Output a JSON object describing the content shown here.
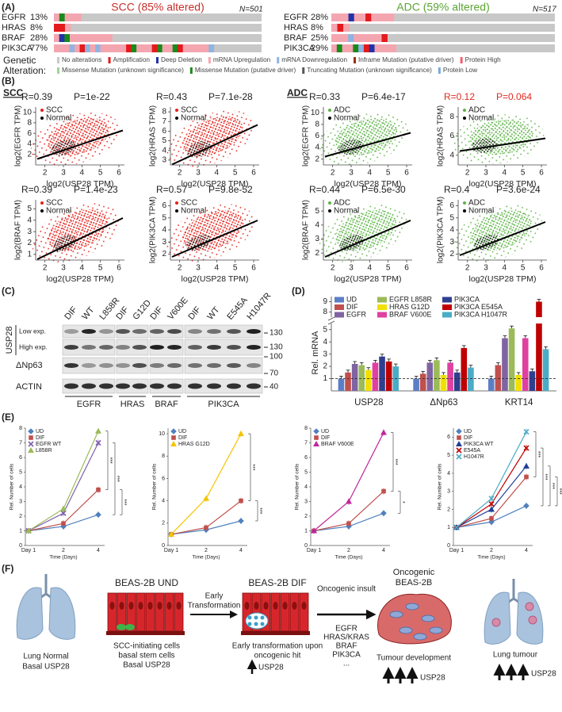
{
  "panel_a": {
    "label": "(A)",
    "groups": [
      {
        "title": "SCC (85% altered)",
        "color": "#c62f2a",
        "n": "N=501",
        "genes": [
          "EGFR",
          "HRAS",
          "BRAF",
          "PIK3CA"
        ],
        "percents": [
          "13%",
          "8%",
          "28%",
          "77%"
        ]
      },
      {
        "title": "ADC (59% altered)",
        "color": "#5aa532",
        "n": "N=517",
        "genes": [
          "EGFR",
          "HRAS",
          "BRAF",
          "PIK3CA"
        ],
        "percents": [
          "28%",
          "8%",
          "25%",
          "29%"
        ]
      }
    ],
    "legend_title": [
      "Genetic",
      "Alteration:"
    ],
    "legend": [
      {
        "name": "No alterations",
        "color": "#c8c8c8"
      },
      {
        "name": "Amplification",
        "color": "#e41a1c"
      },
      {
        "name": "Deep Deletion",
        "color": "#2432a8"
      },
      {
        "name": "mRNA Upregulation",
        "color": "#f4a6b0"
      },
      {
        "name": "mRNA Downregulation",
        "color": "#8fb4e0"
      },
      {
        "name": "Inframe Mutation (putative driver)",
        "color": "#993404"
      },
      {
        "name": "Protein High",
        "color": "#f06070"
      },
      {
        "name": "Missense Mutation (unknown significance)",
        "color": "#9fd39a"
      },
      {
        "name": "Missense Mutation (putative driver)",
        "color": "#1a8a1a"
      },
      {
        "name": "Truncating Mutation (unknown significance)",
        "color": "#555555"
      },
      {
        "name": "Protein Low",
        "color": "#7aa8d8"
      }
    ]
  },
  "panel_b": {
    "label": "(B)",
    "xlim": [
      1.5,
      6.3
    ],
    "xticks": [
      2,
      3,
      4,
      5,
      6
    ],
    "groups": [
      {
        "name": "SCC",
        "color": "#e32119",
        "plots": [
          {
            "r": "R=0.39",
            "p": "P=1e-22",
            "stat_color": "#222222",
            "ylabel": "log2(EGFR TPM)",
            "legend": [
              "SCC",
              "Normal"
            ],
            "xlabel": "log2(USP28 TPM)",
            "ylim": [
              0,
              11
            ],
            "yticks": [
              2,
              4,
              6,
              8,
              10
            ]
          },
          {
            "r": "R=0.43",
            "p": "P=7.1e-28",
            "stat_color": "#222222",
            "ylabel": "log2(HRAS TPM)",
            "legend": [
              "SCC",
              "Normal"
            ],
            "xlabel": "log2(USP28 TPM)",
            "ylim": [
              2.5,
              8.5
            ],
            "yticks": [
              3,
              4,
              5,
              6,
              7,
              8
            ]
          },
          {
            "r": "R=0.39",
            "p": "P=1.4e-23",
            "stat_color": "#222222",
            "ylabel": "log2(BRAF TPM)",
            "legend": [
              "SCC",
              "Normal"
            ],
            "xlabel": "log2(USP28 TPM)",
            "ylim": [
              0.5,
              5.8
            ],
            "yticks": [
              1,
              2,
              3,
              4,
              5
            ]
          },
          {
            "r": "R=0.57",
            "p": "P=9.8e-52",
            "stat_color": "#222222",
            "ylabel": "log2(PIK3CA TPM)",
            "legend": [
              "SCC",
              "Normal"
            ],
            "xlabel": "log2(USP28 TPM)",
            "ylim": [
              1.5,
              6.5
            ],
            "yticks": [
              2,
              3,
              4,
              5,
              6
            ]
          }
        ]
      },
      {
        "name": "ADC",
        "color": "#5cb445",
        "plots": [
          {
            "r": "R=0.33",
            "p": "P=6.4e-17",
            "stat_color": "#222222",
            "ylabel": "log2(EGFR TPM)",
            "legend": [
              "ADC",
              "Normal"
            ],
            "xlabel": "log2(USP28 TPM)",
            "ylim": [
              1,
              11
            ],
            "yticks": [
              2,
              4,
              6,
              8,
              10
            ]
          },
          {
            "r": "R=0.12",
            "p": "P=0.064",
            "stat_color": "#e02a20",
            "ylabel": "log2(HRAS TPM)",
            "legend": [
              "ADC",
              "Normal"
            ],
            "xlabel": "log2(USP28 TPM)",
            "ylim": [
              3,
              9
            ],
            "yticks": [
              4,
              6,
              8
            ]
          },
          {
            "r": "R=0.44",
            "p": "P=6.5e-30",
            "stat_color": "#222222",
            "ylabel": "log2(BRAF TPM)",
            "legend": [
              "ADC",
              "Normal"
            ],
            "xlabel": "log2(USP28 TPM)",
            "ylim": [
              1.5,
              5.8
            ],
            "yticks": [
              2,
              3,
              4,
              5
            ]
          },
          {
            "r": "R=0.4",
            "p": "P=3.6e-24",
            "stat_color": "#222222",
            "ylabel": "log2(PIK3CA TPM)",
            "legend": [
              "ADC",
              "Normal"
            ],
            "xlabel": "log2(USP28 TPM)",
            "ylim": [
              1.5,
              6.5
            ],
            "yticks": [
              2,
              3,
              4,
              5,
              6
            ]
          }
        ]
      }
    ]
  },
  "panel_c": {
    "label": "(C)",
    "lanes": [
      "DIF",
      "WT",
      "L858R",
      "DIF",
      "G12D",
      "DIF",
      "V600E",
      "DIF",
      "WT",
      "E545A",
      "H1047R"
    ],
    "protein": "USP28",
    "rows": [
      "Low exp.",
      "High exp.",
      "ΔNp63",
      "ACTIN"
    ],
    "markers": [
      "130",
      "130",
      "100",
      "70",
      "40"
    ],
    "groups": [
      "EGFR",
      "HRAS",
      "BRAF",
      "PIK3CA"
    ]
  },
  "panel_d": {
    "label": "(D)",
    "type": "bar",
    "ylabel": "Rel. mRNA",
    "categories": [
      "USP28",
      "ΔNp63",
      "KRT14"
    ],
    "ylim": [
      0,
      9.5
    ],
    "axis_break": [
      5.5,
      7.5
    ],
    "yticks": [
      1,
      2,
      3,
      4,
      5,
      8,
      9
    ],
    "series": [
      {
        "name": "UD",
        "color": "#5b7fc7",
        "values": [
          1,
          1,
          1
        ]
      },
      {
        "name": "DIF",
        "color": "#c0504d",
        "values": [
          1.5,
          1.4,
          2.1
        ]
      },
      {
        "name": "EGFR",
        "color": "#8064a2",
        "values": [
          2.2,
          2.3,
          4.3
        ]
      },
      {
        "name": "EGFR L858R",
        "color": "#9bbb59",
        "values": [
          2.1,
          2.5,
          5.1
        ]
      },
      {
        "name": "HRAS G12D",
        "color": "#f2df00",
        "values": [
          1.7,
          1.3,
          1.3
        ]
      },
      {
        "name": "BRAF V600E",
        "color": "#e040a0",
        "values": [
          2.3,
          2.3,
          4.3
        ]
      },
      {
        "name": "PIK3CA",
        "color": "#2e3f8f",
        "values": [
          2.8,
          1.5,
          1.6
        ]
      },
      {
        "name": "PIK3CA E545A",
        "color": "#c00000",
        "values": [
          2.4,
          3.5,
          9
        ]
      },
      {
        "name": "PIK3CA H1047R",
        "color": "#4bacc6",
        "values": [
          2.0,
          1.9,
          3.4
        ]
      }
    ]
  },
  "panel_e": {
    "label": "(E)",
    "charts": [
      {
        "type": "line",
        "ylabel": "Rel. Number of cells",
        "xlabel": "Time (Days)",
        "categories": [
          "Day 1",
          "2",
          "4"
        ],
        "ylim": [
          0,
          8
        ],
        "yticks": [
          0,
          1,
          2,
          3,
          4,
          5,
          6,
          7,
          8
        ],
        "annotations": [
          "***",
          "***",
          "***"
        ],
        "series": [
          {
            "name": "UD",
            "color": "#4f81bd",
            "marker": "diamond",
            "values": [
              1,
              1.3,
              2.1
            ]
          },
          {
            "name": "DIF",
            "color": "#c0504d",
            "marker": "square",
            "values": [
              1,
              1.5,
              3.8
            ]
          },
          {
            "name": "EGFR WT",
            "color": "#7f5fb0",
            "marker": "x",
            "values": [
              1,
              2.2,
              7.0
            ]
          },
          {
            "name": "L858R",
            "color": "#9bbb59",
            "marker": "triangle",
            "values": [
              1,
              2.5,
              7.8
            ]
          }
        ]
      },
      {
        "type": "line",
        "ylabel": "Rel. Number of cells",
        "xlabel": "Time (Days)",
        "categories": [
          "Day 1",
          "2",
          "4"
        ],
        "ylim": [
          0,
          10.5
        ],
        "yticks": [
          0,
          2,
          4,
          6,
          8,
          10
        ],
        "annotations": [
          "***",
          "***"
        ],
        "series": [
          {
            "name": "UD",
            "color": "#4f81bd",
            "marker": "diamond",
            "values": [
              1,
              1.4,
              2.2
            ]
          },
          {
            "name": "DIF",
            "color": "#c0504d",
            "marker": "square",
            "values": [
              1,
              1.6,
              4.0
            ]
          },
          {
            "name": "HRAS G12D",
            "color": "#f5c400",
            "marker": "triangle",
            "values": [
              1,
              4.2,
              10
            ]
          }
        ]
      },
      {
        "type": "line",
        "ylabel": "Rel. Number of cells",
        "xlabel": "Time (Days)",
        "categories": [
          "Day 1",
          "2",
          "4"
        ],
        "ylim": [
          0,
          8
        ],
        "yticks": [
          0,
          1,
          2,
          3,
          4,
          5,
          6,
          7,
          8
        ],
        "annotations": [
          "***",
          "*"
        ],
        "series": [
          {
            "name": "UD",
            "color": "#4f81bd",
            "marker": "diamond",
            "values": [
              1,
              1.3,
              2.2
            ]
          },
          {
            "name": "DIF",
            "color": "#c0504d",
            "marker": "square",
            "values": [
              1,
              1.5,
              3.7
            ]
          },
          {
            "name": "BRAF V600E",
            "color": "#c0259a",
            "marker": "triangle",
            "values": [
              1,
              3.0,
              7.7
            ]
          }
        ]
      },
      {
        "type": "line",
        "ylabel": "Rel. Number of cells",
        "xlabel": "Time (Days)",
        "categories": [
          "Day 1",
          "2",
          "4"
        ],
        "ylim": [
          0,
          6.5
        ],
        "yticks": [
          0,
          1,
          2,
          3,
          4,
          5,
          6
        ],
        "annotations": [
          "***",
          "***",
          "***",
          "***"
        ],
        "series": [
          {
            "name": "UD",
            "color": "#4f81bd",
            "marker": "diamond",
            "values": [
              1,
              1.3,
              2.2
            ]
          },
          {
            "name": "DIF",
            "color": "#c0504d",
            "marker": "square",
            "values": [
              1,
              1.5,
              3.8
            ]
          },
          {
            "name": "PIK3CA WT",
            "color": "#1f3f99",
            "marker": "triangle",
            "values": [
              1,
              2.0,
              4.4
            ]
          },
          {
            "name": "E545A",
            "color": "#c00000",
            "marker": "x",
            "values": [
              1,
              2.3,
              5.4
            ]
          },
          {
            "name": "H1047R",
            "color": "#4bacc6",
            "marker": "x",
            "values": [
              1,
              2.6,
              6.3
            ]
          }
        ]
      }
    ]
  },
  "panel_f": {
    "label": "(F)",
    "normal": [
      "Lung Normal",
      "Basal USP28"
    ],
    "und": {
      "title": "BEAS-2B UND",
      "caption": [
        "SCC-initiating cells",
        "basal stem cells",
        "Basal USP28"
      ]
    },
    "step1": [
      "Early",
      "Transformation"
    ],
    "dif": {
      "title": "BEAS-2B DIF",
      "caption": [
        "Early transformation upon",
        "oncogenic hit"
      ],
      "marker": "USP28"
    },
    "step2": {
      "title": "Oncogenic insult",
      "items": [
        "EGFR",
        "HRAS/KRAS",
        "BRAF",
        "PIK3CA",
        "..."
      ]
    },
    "oncogenic": {
      "title": [
        "Oncogenic",
        "BEAS-2B"
      ],
      "caption": "Tumour development",
      "marker": "USP28"
    },
    "tumour": {
      "caption": "Lung tumour",
      "marker": "USP28"
    }
  }
}
